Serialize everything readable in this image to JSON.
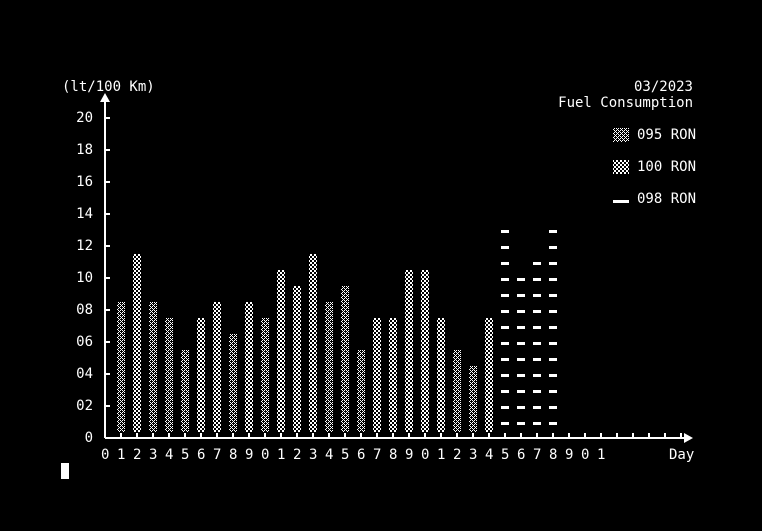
{
  "header": {
    "unit_label": "(lt/100 Km)",
    "date": "03/2023",
    "title": "Fuel Consumption"
  },
  "legend": [
    {
      "label": "095 RON",
      "pattern": "hatch"
    },
    {
      "label": "100 RON",
      "pattern": "check"
    },
    {
      "label": "098 RON",
      "pattern": "dash"
    }
  ],
  "chart_data": {
    "type": "bar",
    "title": "Fuel Consumption",
    "subtitle": "03/2023",
    "ylabel": "(lt/100 Km)",
    "xlabel": "Day",
    "ylim": [
      0,
      20
    ],
    "y_ticks": [
      "0",
      "02",
      "04",
      "06",
      "08",
      "10",
      "12",
      "14",
      "16",
      "18",
      "20"
    ],
    "x_tick_labels": [
      "0",
      "1",
      "2",
      "3",
      "4",
      "5",
      "6",
      "7",
      "8",
      "9",
      "0",
      "1",
      "2",
      "3",
      "4",
      "5",
      "6",
      "7",
      "8",
      "9",
      "0",
      "1",
      "2",
      "3",
      "4",
      "5",
      "6",
      "7",
      "8",
      "9",
      "0",
      "1"
    ],
    "days": [
      1,
      2,
      3,
      4,
      5,
      6,
      7,
      8,
      9,
      10,
      11,
      12,
      13,
      14,
      15,
      16,
      17,
      18,
      19,
      20,
      21,
      22,
      23,
      24,
      25,
      26,
      27,
      28
    ],
    "series": [
      {
        "name": "095 RON",
        "pattern": "hatch",
        "values": [
          8.5,
          0,
          8.5,
          7.5,
          5.5,
          0,
          0,
          6.5,
          0,
          7.5,
          0,
          0,
          0,
          8.5,
          9.5,
          5.5,
          0,
          0,
          0,
          0,
          0,
          5.5,
          4.5,
          0,
          0,
          0,
          0,
          0
        ]
      },
      {
        "name": "100 RON",
        "pattern": "check",
        "values": [
          0,
          11.5,
          0,
          0,
          0,
          7.5,
          8.5,
          0,
          8.5,
          0,
          10.5,
          9.5,
          11.5,
          0,
          0,
          0,
          7.5,
          7.5,
          10.5,
          10.5,
          7.5,
          0,
          0,
          7.5,
          0,
          0,
          0,
          0
        ]
      },
      {
        "name": "098 RON",
        "pattern": "dash",
        "values": [
          0,
          0,
          0,
          0,
          0,
          0,
          0,
          0,
          0,
          0,
          0,
          0,
          0,
          0,
          0,
          0,
          0,
          0,
          0,
          0,
          0,
          0,
          0,
          0,
          13.5,
          10.5,
          11.5,
          13.5
        ]
      }
    ],
    "grid": false,
    "legend_position": "top-right"
  }
}
